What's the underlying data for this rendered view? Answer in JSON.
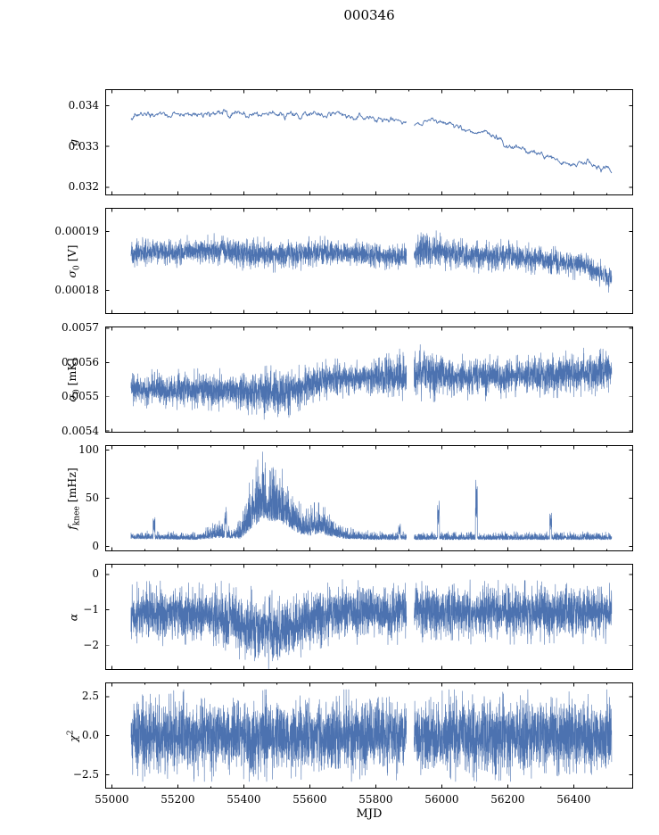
{
  "chart_data": {
    "type": "line",
    "title": "000346",
    "xlabel": "MJD",
    "line_color": "#4c72b0",
    "xlim": [
      54980,
      56580
    ],
    "x_minor_step": 100,
    "gap": [
      55893,
      55916
    ],
    "xticks": [
      {
        "v": 55000,
        "label": "55000"
      },
      {
        "v": 55200,
        "label": "55200"
      },
      {
        "v": 55400,
        "label": "55400"
      },
      {
        "v": 55600,
        "label": "55600"
      },
      {
        "v": 55800,
        "label": "55800"
      },
      {
        "v": 56000,
        "label": "56000"
      },
      {
        "v": 56200,
        "label": "56200"
      },
      {
        "v": 56400,
        "label": "56400"
      }
    ],
    "panels": [
      {
        "name": "g",
        "ylabel_parts": [
          {
            "t": "g",
            "style": "italic"
          }
        ],
        "ylim": [
          0.0318,
          0.0344
        ],
        "yticks": [
          {
            "v": 0.034,
            "label": "0.034"
          },
          {
            "v": 0.033,
            "label": "0.033"
          },
          {
            "v": 0.032,
            "label": "0.032"
          }
        ],
        "xdata": [
          55058,
          56515
        ],
        "n": 900,
        "seed": 7,
        "noise": "ar",
        "lw": 0.9,
        "trend": [
          [
            55058,
            0.03367
          ],
          [
            55075,
            0.03376
          ],
          [
            55120,
            0.03378
          ],
          [
            55180,
            0.03377
          ],
          [
            55240,
            0.0338
          ],
          [
            55300,
            0.03378
          ],
          [
            55360,
            0.03381
          ],
          [
            55420,
            0.03377
          ],
          [
            55480,
            0.03379
          ],
          [
            55540,
            0.03381
          ],
          [
            55600,
            0.03377
          ],
          [
            55650,
            0.03379
          ],
          [
            55700,
            0.03375
          ],
          [
            55760,
            0.0337
          ],
          [
            55820,
            0.03366
          ],
          [
            55880,
            0.03362
          ],
          [
            55930,
            0.03356
          ],
          [
            55975,
            0.03366
          ],
          [
            56005,
            0.0336
          ],
          [
            56040,
            0.03348
          ],
          [
            56100,
            0.03338
          ],
          [
            56150,
            0.03332
          ],
          [
            56200,
            0.03301
          ],
          [
            56250,
            0.03293
          ],
          [
            56300,
            0.03281
          ],
          [
            56350,
            0.03263
          ],
          [
            56400,
            0.03253
          ],
          [
            56440,
            0.03259
          ],
          [
            56480,
            0.03246
          ],
          [
            56515,
            0.03243
          ]
        ],
        "amp": [
          [
            55058,
            4e-05
          ],
          [
            56515,
            4e-05
          ]
        ],
        "spikes": []
      },
      {
        "name": "sigma0-v",
        "ylabel_parts": [
          {
            "t": "σ",
            "style": "italic"
          },
          {
            "t": "0",
            "style": "sub"
          },
          {
            "t": " [V]"
          }
        ],
        "ylim": [
          0.000176,
          0.000194
        ],
        "yticks": [
          {
            "v": 0.00019,
            "label": "0.00019"
          },
          {
            "v": 0.00018,
            "label": "0.00018"
          }
        ],
        "xdata": [
          55058,
          56515
        ],
        "n": 3800,
        "seed": 13,
        "noise": "gauss",
        "lw": 0.6,
        "trend": [
          [
            55058,
            0.0001862
          ],
          [
            55120,
            0.0001866
          ],
          [
            55200,
            0.0001866
          ],
          [
            55280,
            0.0001868
          ],
          [
            55360,
            0.0001867
          ],
          [
            55420,
            0.0001861
          ],
          [
            55480,
            0.000186
          ],
          [
            55560,
            0.0001862
          ],
          [
            55640,
            0.0001864
          ],
          [
            55720,
            0.0001863
          ],
          [
            55800,
            0.0001861
          ],
          [
            55870,
            0.0001857
          ],
          [
            55915,
            0.000186
          ],
          [
            55945,
            0.0001872
          ],
          [
            55975,
            0.0001867
          ],
          [
            56020,
            0.0001863
          ],
          [
            56080,
            0.000186
          ],
          [
            56140,
            0.0001857
          ],
          [
            56200,
            0.0001859
          ],
          [
            56260,
            0.0001856
          ],
          [
            56320,
            0.0001849
          ],
          [
            56380,
            0.0001846
          ],
          [
            56440,
            0.0001842
          ],
          [
            56480,
            0.0001828
          ],
          [
            56515,
            0.000182
          ]
        ],
        "amp": [
          [
            55058,
            9e-07
          ],
          [
            55400,
            1.1e-06
          ],
          [
            55900,
            9e-07
          ],
          [
            55940,
            1.8e-06
          ],
          [
            56000,
            1.1e-06
          ],
          [
            56515,
            9e-07
          ]
        ],
        "spikes": []
      },
      {
        "name": "sigma0-mk",
        "ylabel_parts": [
          {
            "t": "σ",
            "style": "italic"
          },
          {
            "t": "0",
            "style": "sub"
          },
          {
            "t": " [mK]"
          }
        ],
        "ylim": [
          0.005395,
          0.005705
        ],
        "yticks": [
          {
            "v": 0.0057,
            "label": "0.0057"
          },
          {
            "v": 0.0056,
            "label": "0.0056"
          },
          {
            "v": 0.0055,
            "label": "0.0055"
          },
          {
            "v": 0.0054,
            "label": "0.0054"
          }
        ],
        "xdata": [
          55058,
          56515
        ],
        "n": 4200,
        "seed": 21,
        "noise": "gauss",
        "lw": 0.6,
        "trend": [
          [
            55058,
            0.00553
          ],
          [
            55100,
            0.005524
          ],
          [
            55160,
            0.00552
          ],
          [
            55240,
            0.005522
          ],
          [
            55320,
            0.005521
          ],
          [
            55400,
            0.005516
          ],
          [
            55460,
            0.005511
          ],
          [
            55520,
            0.005514
          ],
          [
            55575,
            0.005522
          ],
          [
            55615,
            0.005545
          ],
          [
            55660,
            0.005552
          ],
          [
            55740,
            0.005553
          ],
          [
            55820,
            0.005556
          ],
          [
            55900,
            0.005558
          ],
          [
            55945,
            0.005568
          ],
          [
            55990,
            0.005562
          ],
          [
            56060,
            0.005558
          ],
          [
            56140,
            0.005562
          ],
          [
            56220,
            0.005561
          ],
          [
            56300,
            0.005564
          ],
          [
            56380,
            0.005567
          ],
          [
            56450,
            0.005572
          ],
          [
            56515,
            0.005583
          ]
        ],
        "amp": [
          [
            55058,
            2e-05
          ],
          [
            55300,
            2.2e-05
          ],
          [
            55430,
            2.6e-05
          ],
          [
            55500,
            3e-05
          ],
          [
            55560,
            2.6e-05
          ],
          [
            55640,
            2.2e-05
          ],
          [
            55760,
            1.9e-05
          ],
          [
            55900,
            3.2e-05
          ],
          [
            55960,
            3e-05
          ],
          [
            56030,
            2.2e-05
          ],
          [
            56120,
            2.7e-05
          ],
          [
            56220,
            2.2e-05
          ],
          [
            56320,
            2.4e-05
          ],
          [
            56420,
            2.6e-05
          ],
          [
            56515,
            2.6e-05
          ]
        ],
        "spikes": []
      },
      {
        "name": "fknee",
        "ylabel_parts": [
          {
            "t": "f",
            "style": "italic"
          },
          {
            "t": "knee",
            "style": "sub"
          },
          {
            "t": " [mHz]"
          }
        ],
        "ylim": [
          -5,
          105
        ],
        "yticks": [
          {
            "v": 100,
            "label": "100"
          },
          {
            "v": 50,
            "label": "50"
          },
          {
            "v": 0,
            "label": "0"
          }
        ],
        "xdata": [
          55058,
          56515
        ],
        "n": 4500,
        "seed": 29,
        "noise": "pos",
        "lw": 0.6,
        "trend": [
          [
            55058,
            8
          ],
          [
            55250,
            7
          ],
          [
            55330,
            9
          ],
          [
            55390,
            8
          ],
          [
            55425,
            18
          ],
          [
            55455,
            28
          ],
          [
            55495,
            26
          ],
          [
            55530,
            22
          ],
          [
            55565,
            13
          ],
          [
            55600,
            11
          ],
          [
            55630,
            14
          ],
          [
            55665,
            10
          ],
          [
            55710,
            8
          ],
          [
            55790,
            7
          ],
          [
            56515,
            7
          ]
        ],
        "amp": [
          [
            55058,
            5
          ],
          [
            55270,
            5
          ],
          [
            55320,
            11
          ],
          [
            55370,
            7
          ],
          [
            55420,
            32
          ],
          [
            55450,
            42
          ],
          [
            55500,
            40
          ],
          [
            55540,
            28
          ],
          [
            55575,
            18
          ],
          [
            55610,
            20
          ],
          [
            55645,
            18
          ],
          [
            55690,
            10
          ],
          [
            55740,
            7
          ],
          [
            55820,
            5
          ],
          [
            56515,
            5
          ]
        ],
        "spikes": [
          [
            55128,
            20
          ],
          [
            55345,
            22
          ],
          [
            55872,
            12
          ],
          [
            55990,
            40
          ],
          [
            56105,
            56
          ],
          [
            56330,
            26
          ]
        ]
      },
      {
        "name": "alpha",
        "ylabel_parts": [
          {
            "t": "α",
            "style": "italic"
          }
        ],
        "ylim": [
          -2.7,
          0.3
        ],
        "yticks": [
          {
            "v": 0,
            "label": "0"
          },
          {
            "v": -1,
            "label": "−1"
          },
          {
            "v": -2,
            "label": "−2"
          }
        ],
        "xdata": [
          55058,
          56515
        ],
        "n": 4500,
        "seed": 37,
        "noise": "gauss",
        "lw": 0.6,
        "trend": [
          [
            55058,
            -1.1
          ],
          [
            55200,
            -1.1
          ],
          [
            55290,
            -1.13
          ],
          [
            55350,
            -1.22
          ],
          [
            55410,
            -1.42
          ],
          [
            55470,
            -1.58
          ],
          [
            55530,
            -1.55
          ],
          [
            55575,
            -1.38
          ],
          [
            55615,
            -1.18
          ],
          [
            55670,
            -1.07
          ],
          [
            55760,
            -1.06
          ],
          [
            55900,
            -1.07
          ],
          [
            56100,
            -1.06
          ],
          [
            56300,
            -1.08
          ],
          [
            56515,
            -1.06
          ]
        ],
        "amp": [
          [
            55058,
            0.32
          ],
          [
            55300,
            0.34
          ],
          [
            55400,
            0.4
          ],
          [
            55560,
            0.4
          ],
          [
            55640,
            0.33
          ],
          [
            56515,
            0.32
          ]
        ],
        "spikes": []
      },
      {
        "name": "chi2",
        "ylabel_parts": [
          {
            "t": "χ",
            "style": "italic"
          },
          {
            "t": "2",
            "style": "sup"
          }
        ],
        "ylim": [
          -3.4,
          3.4
        ],
        "yticks": [
          {
            "v": 2.5,
            "label": "2.5"
          },
          {
            "v": 0,
            "label": "0.0"
          },
          {
            "v": -2.5,
            "label": "−2.5"
          }
        ],
        "xdata": [
          55058,
          56515
        ],
        "n": 5000,
        "seed": 43,
        "noise": "gauss",
        "lw": 0.6,
        "trend": [
          [
            55058,
            0
          ],
          [
            56515,
            0
          ]
        ],
        "amp": [
          [
            55058,
            1.05
          ],
          [
            56515,
            1.05
          ]
        ],
        "spikes": []
      }
    ]
  }
}
